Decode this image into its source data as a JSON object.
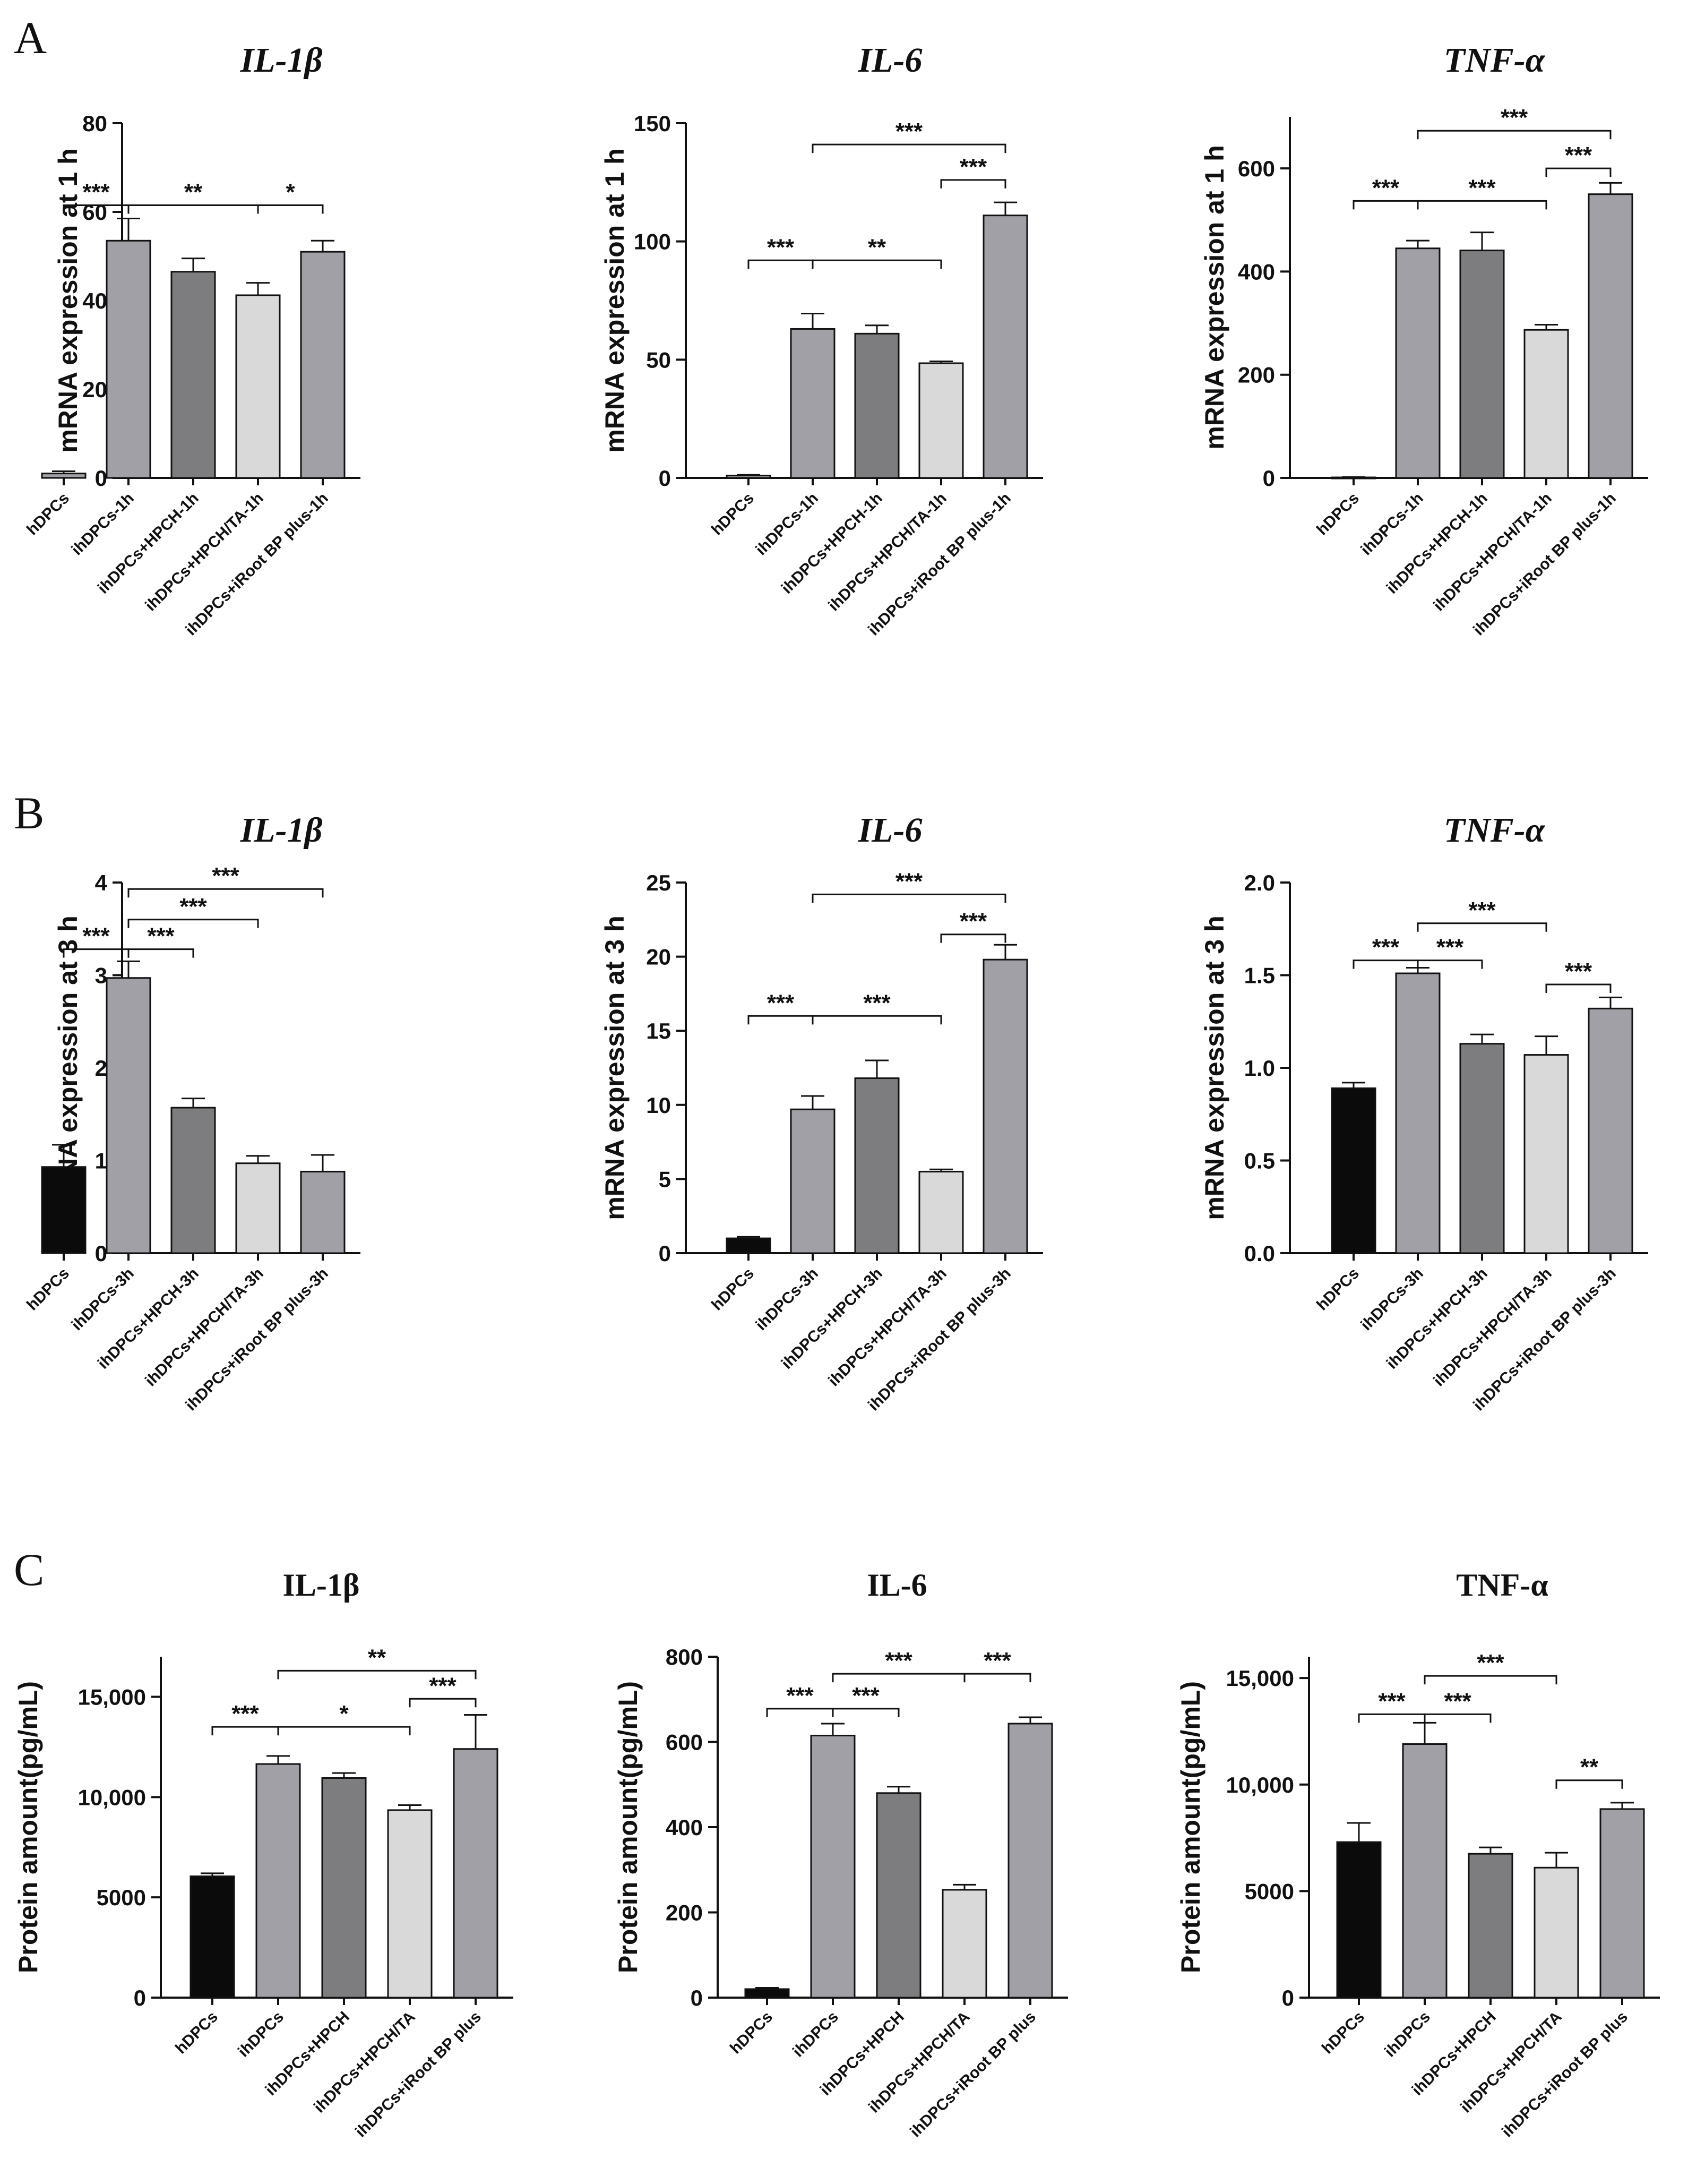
{
  "figure": {
    "panel_labels": [
      "A",
      "B",
      "C"
    ],
    "colors": {
      "black": "#0b0b0b",
      "mid_gray": "#a0a0a6",
      "dark_gray": "#7d7d80",
      "light_gray": "#d9d9d9",
      "axis": "#111111"
    }
  },
  "chart_data": [
    {
      "id": "A1",
      "panel": "A",
      "type": "bar",
      "title": "IL-1β",
      "title_italic": true,
      "ylabel": "mRNA expression at 1 h",
      "xlabel": "",
      "ylim": [
        0,
        80
      ],
      "yticks": [
        0,
        20,
        40,
        60,
        80
      ],
      "ytick_labels": [
        "0",
        "20",
        "40",
        "60",
        "80"
      ],
      "categories": [
        "hDPCs",
        "ihDPCs-1h",
        "ihDPCs+HPCH-1h",
        "ihDPCs+HPCH/TA-1h",
        "ihDPCs+iRoot BP plus-1h"
      ],
      "values": [
        1,
        53.5,
        46.5,
        41.2,
        51
      ],
      "errors": [
        0.5,
        5,
        3,
        2.8,
        2.5
      ],
      "fill_colors": [
        "#a0a0a6",
        "#a0a0a6",
        "#7d7d80",
        "#d9d9d9",
        "#a0a0a6"
      ],
      "significance": [
        {
          "from": 0,
          "to": 1,
          "label": "***",
          "level": 61.5
        },
        {
          "from": 1,
          "to": 3,
          "label": "**",
          "level": 61.5
        },
        {
          "from": 3,
          "to": 4,
          "label": "*",
          "level": 61.5
        }
      ]
    },
    {
      "id": "A2",
      "panel": "A",
      "type": "bar",
      "title": "IL-6",
      "title_italic": true,
      "ylabel": "mRNA expression at 1 h",
      "xlabel": "",
      "ylim": [
        0,
        150
      ],
      "yticks": [
        0,
        50,
        100,
        150
      ],
      "ytick_labels": [
        "0",
        "50",
        "100",
        "150"
      ],
      "categories": [
        "hDPCs",
        "ihDPCs-1h",
        "ihDPCs+HPCH-1h",
        "ihDPCs+HPCH/TA-1h",
        "ihDPCs+iRoot BP plus-1h"
      ],
      "values": [
        1,
        63,
        61,
        48.5,
        111
      ],
      "errors": [
        0.3,
        6.5,
        3.5,
        0.8,
        5.5
      ],
      "fill_colors": [
        "#a0a0a6",
        "#a0a0a6",
        "#7d7d80",
        "#d9d9d9",
        "#a0a0a6"
      ],
      "significance": [
        {
          "from": 0,
          "to": 1,
          "label": "***",
          "level": 92
        },
        {
          "from": 1,
          "to": 3,
          "label": "**",
          "level": 92
        },
        {
          "from": 3,
          "to": 4,
          "label": "***",
          "level": 126
        },
        {
          "from": 1,
          "to": 4,
          "label": "***",
          "level": 141
        }
      ]
    },
    {
      "id": "A3",
      "panel": "A",
      "type": "bar",
      "title": "TNF-α",
      "title_italic": true,
      "ylabel": "mRNA expression at 1 h",
      "xlabel": "",
      "ylim": [
        0,
        700
      ],
      "yticks": [
        0,
        200,
        400,
        600
      ],
      "ytick_labels": [
        "0",
        "200",
        "400",
        "600"
      ],
      "categories": [
        "hDPCs",
        "ihDPCs-1h",
        "ihDPCs+HPCH-1h",
        "ihDPCs+HPCH/TA-1h",
        "ihDPCs+iRoot BP plus-1h"
      ],
      "values": [
        1,
        445,
        441,
        287,
        550
      ],
      "errors": [
        0.5,
        15,
        35,
        10,
        22
      ],
      "fill_colors": [
        "#a0a0a6",
        "#a0a0a6",
        "#7d7d80",
        "#d9d9d9",
        "#a0a0a6"
      ],
      "significance": [
        {
          "from": 0,
          "to": 1,
          "label": "***",
          "level": 537
        },
        {
          "from": 1,
          "to": 3,
          "label": "***",
          "level": 537
        },
        {
          "from": 3,
          "to": 4,
          "label": "***",
          "level": 600
        },
        {
          "from": 1,
          "to": 4,
          "label": "***",
          "level": 673
        }
      ]
    },
    {
      "id": "B1",
      "panel": "B",
      "type": "bar",
      "title": "IL-1β",
      "title_italic": true,
      "ylabel": "mRNA expression at 3 h",
      "xlabel": "",
      "ylim": [
        0,
        4
      ],
      "yticks": [
        0,
        1,
        2,
        3,
        4
      ],
      "ytick_labels": [
        "0",
        "1",
        "2",
        "3",
        "4"
      ],
      "categories": [
        "hDPCs",
        "ihDPCs-3h",
        "ihDPCs+HPCH-3h",
        "ihDPCs+HPCH/TA-3h",
        "ihDPCs+iRoot BP plus-3h"
      ],
      "values": [
        0.93,
        2.97,
        1.57,
        0.97,
        0.88
      ],
      "errors": [
        0.24,
        0.18,
        0.1,
        0.08,
        0.18
      ],
      "fill_colors": [
        "#0b0b0b",
        "#a0a0a6",
        "#7d7d80",
        "#d9d9d9",
        "#a0a0a6"
      ],
      "significance": [
        {
          "from": 0,
          "to": 1,
          "label": "***",
          "level": 3.28
        },
        {
          "from": 1,
          "to": 2,
          "label": "***",
          "level": 3.28
        },
        {
          "from": 1,
          "to": 3,
          "label": "***",
          "level": 3.6
        },
        {
          "from": 1,
          "to": 4,
          "label": "***",
          "level": 3.93
        }
      ]
    },
    {
      "id": "B2",
      "panel": "B",
      "type": "bar",
      "title": "IL-6",
      "title_italic": true,
      "ylabel": "mRNA expression at 3 h",
      "xlabel": "",
      "ylim": [
        0,
        25
      ],
      "yticks": [
        0,
        5,
        10,
        15,
        20,
        25
      ],
      "ytick_labels": [
        "0",
        "5",
        "10",
        "15",
        "20",
        "25"
      ],
      "categories": [
        "hDPCs",
        "ihDPCs-3h",
        "ihDPCs+HPCH-3h",
        "ihDPCs+HPCH/TA-3h",
        "ihDPCs+iRoot BP plus-3h"
      ],
      "values": [
        1,
        9.7,
        11.8,
        5.5,
        19.8
      ],
      "errors": [
        0.1,
        0.9,
        1.2,
        0.15,
        1
      ],
      "fill_colors": [
        "#0b0b0b",
        "#a0a0a6",
        "#7d7d80",
        "#d9d9d9",
        "#a0a0a6"
      ],
      "significance": [
        {
          "from": 0,
          "to": 1,
          "label": "***",
          "level": 16
        },
        {
          "from": 1,
          "to": 3,
          "label": "***",
          "level": 16
        },
        {
          "from": 3,
          "to": 4,
          "label": "***",
          "level": 21.5
        },
        {
          "from": 1,
          "to": 4,
          "label": "***",
          "level": 24.2
        }
      ]
    },
    {
      "id": "B3",
      "panel": "B",
      "type": "bar",
      "title": "TNF-α",
      "title_italic": true,
      "ylabel": "mRNA expression at 3 h",
      "xlabel": "",
      "ylim": [
        0,
        2
      ],
      "yticks": [
        0,
        0.5,
        1,
        1.5,
        2
      ],
      "ytick_labels": [
        "0.0",
        "0.5",
        "1.0",
        "1.5",
        "2.0"
      ],
      "categories": [
        "hDPCs",
        "ihDPCs-3h",
        "ihDPCs+HPCH-3h",
        "ihDPCs+HPCH/TA-3h",
        "ihDPCs+iRoot BP plus-3h"
      ],
      "values": [
        0.89,
        1.51,
        1.13,
        1.07,
        1.32
      ],
      "errors": [
        0.03,
        0.03,
        0.05,
        0.1,
        0.06
      ],
      "fill_colors": [
        "#0b0b0b",
        "#a0a0a6",
        "#7d7d80",
        "#d9d9d9",
        "#a0a0a6"
      ],
      "significance": [
        {
          "from": 0,
          "to": 1,
          "label": "***",
          "level": 1.58
        },
        {
          "from": 1,
          "to": 2,
          "label": "***",
          "level": 1.58
        },
        {
          "from": 3,
          "to": 4,
          "label": "***",
          "level": 1.45
        },
        {
          "from": 1,
          "to": 3,
          "label": "***",
          "level": 1.78
        }
      ]
    },
    {
      "id": "C1",
      "panel": "C",
      "type": "bar",
      "title": "IL-1β",
      "title_italic": false,
      "ylabel": "Protein amount(pg/mL)",
      "xlabel": "",
      "ylim": [
        0,
        17000
      ],
      "yticks": [
        0,
        5000,
        10000,
        15000
      ],
      "ytick_labels": [
        "0",
        "5000",
        "10,000",
        "15,000"
      ],
      "categories": [
        "hDPCs",
        "ihDPCs",
        "ihDPCs+HPCH",
        "ihDPCs+HPCH/TA",
        "ihDPCs+iRoot BP plus"
      ],
      "values": [
        6050,
        11650,
        10950,
        9350,
        12400
      ],
      "errors": [
        150,
        400,
        250,
        250,
        1700
      ],
      "fill_colors": [
        "#0b0b0b",
        "#a0a0a6",
        "#7d7d80",
        "#d9d9d9",
        "#a0a0a6"
      ],
      "significance": [
        {
          "from": 0,
          "to": 1,
          "label": "***",
          "level": 13500
        },
        {
          "from": 1,
          "to": 3,
          "label": "*",
          "level": 13500
        },
        {
          "from": 3,
          "to": 4,
          "label": "***",
          "level": 14900
        },
        {
          "from": 1,
          "to": 4,
          "label": "**",
          "level": 16300
        }
      ]
    },
    {
      "id": "C2",
      "panel": "C",
      "type": "bar",
      "title": "IL-6",
      "title_italic": false,
      "ylabel": "Protein amount(pg/mL)",
      "xlabel": "",
      "ylim": [
        0,
        800
      ],
      "yticks": [
        0,
        200,
        400,
        600,
        800
      ],
      "ytick_labels": [
        "0",
        "200",
        "400",
        "600",
        "800"
      ],
      "categories": [
        "hDPCs",
        "ihDPCs",
        "ihDPCs+HPCH",
        "ihDPCs+HPCH/TA",
        "ihDPCs+iRoot BP plus"
      ],
      "values": [
        20,
        615,
        480,
        253,
        643
      ],
      "errors": [
        3,
        28,
        15,
        12,
        15
      ],
      "fill_colors": [
        "#0b0b0b",
        "#a0a0a6",
        "#7d7d80",
        "#d9d9d9",
        "#a0a0a6"
      ],
      "significance": [
        {
          "from": 0,
          "to": 1,
          "label": "***",
          "level": 678
        },
        {
          "from": 1,
          "to": 2,
          "label": "***",
          "level": 678
        },
        {
          "from": 1,
          "to": 3,
          "label": "***",
          "level": 760
        },
        {
          "from": 3,
          "to": 4,
          "label": "***",
          "level": 760
        }
      ]
    },
    {
      "id": "C3",
      "panel": "C",
      "type": "bar",
      "title": "TNF-α",
      "title_italic": false,
      "ylabel": "Protein amount(pg/mL)",
      "xlabel": "",
      "ylim": [
        0,
        16000
      ],
      "yticks": [
        0,
        5000,
        10000,
        15000
      ],
      "ytick_labels": [
        "0",
        "5000",
        "10,000",
        "15,000"
      ],
      "categories": [
        "hDPCs",
        "ihDPCs",
        "ihDPCs+HPCH",
        "ihDPCs+HPCH/TA",
        "ihDPCs+iRoot BP plus"
      ],
      "values": [
        7300,
        11900,
        6750,
        6100,
        8850
      ],
      "errors": [
        900,
        1000,
        300,
        700,
        300
      ],
      "fill_colors": [
        "#0b0b0b",
        "#a0a0a6",
        "#7d7d80",
        "#d9d9d9",
        "#a0a0a6"
      ],
      "significance": [
        {
          "from": 0,
          "to": 1,
          "label": "***",
          "level": 13300
        },
        {
          "from": 1,
          "to": 2,
          "label": "***",
          "level": 13300
        },
        {
          "from": 3,
          "to": 4,
          "label": "**",
          "level": 10200
        },
        {
          "from": 1,
          "to": 3,
          "label": "***",
          "level": 15100
        }
      ]
    }
  ]
}
